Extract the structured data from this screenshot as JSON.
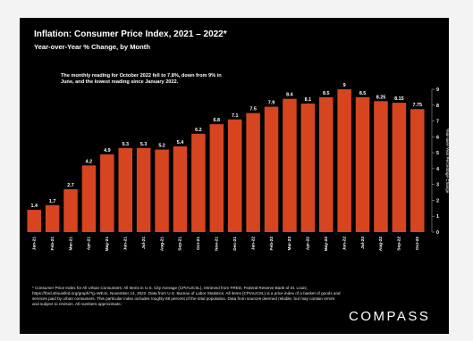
{
  "chart_data": {
    "type": "bar",
    "title": "Inflation: Consumer Price Index, 2021 – 2022*",
    "subtitle": "Year-over-Year % Change, by Month",
    "annotation": "The monthly reading for October 2022 fell to 7.8%, down from 9% in June, and the lowest reading since January 2022.",
    "ylabel": "Year-over-Year Percentage Change",
    "ylim": [
      0,
      9
    ],
    "yticks": [
      0,
      1,
      2,
      3,
      4,
      5,
      6,
      7,
      8,
      9
    ],
    "y_axis_position": "right",
    "grid": false,
    "bar_color": "#d6451f",
    "categories": [
      "Jan-21",
      "Feb-21",
      "Mar-21",
      "Apr-21",
      "May-21",
      "Jun-21",
      "Jul-21",
      "Aug-21",
      "Sep-21",
      "Oct-21",
      "Nov-21",
      "Dec-21",
      "Jan-22",
      "Feb-22",
      "Mar-22",
      "Apr-22",
      "May-22",
      "Jun-22",
      "Jul-22",
      "Aug-22",
      "Sep-22",
      "Oct-22"
    ],
    "values": [
      1.4,
      1.7,
      2.7,
      4.2,
      4.9,
      5.3,
      5.3,
      5.2,
      5.4,
      6.2,
      6.8,
      7.1,
      7.5,
      7.9,
      8.4,
      8.1,
      8.5,
      9,
      8.5,
      8.25,
      8.15,
      7.75
    ],
    "value_labels": [
      "1.4",
      "1.7",
      "2.7",
      "4.2",
      "4.9",
      "5.3",
      "5.3",
      "5.2",
      "5.4",
      "6.2",
      "6.8",
      "7.1",
      "7.5",
      "7.9",
      "8.4",
      "8.1",
      "8.5",
      "9",
      "8.5",
      "8.25",
      "8.15",
      "7.75"
    ]
  },
  "footnote": "* Consumer Price Index for All Urban Consumers: All Items in U.S. City Average (CPIAUCSL), retrieved from FRED, Federal Reserve Bank of St. Louis; https://fred.stlouisfed.org/graph/?g=WEJx, November 14, 2022. Data from U.S. Bureau of Labor Statistics. All items (CPIAUCSL) is a price index of a basket of goods and services paid by urban consumers. This particular index includes roughly 88 percent of the total population. Data from sources deemed reliable, but may contain errors and subject to revision. All numbers approximate.",
  "brand": "COMPASS"
}
